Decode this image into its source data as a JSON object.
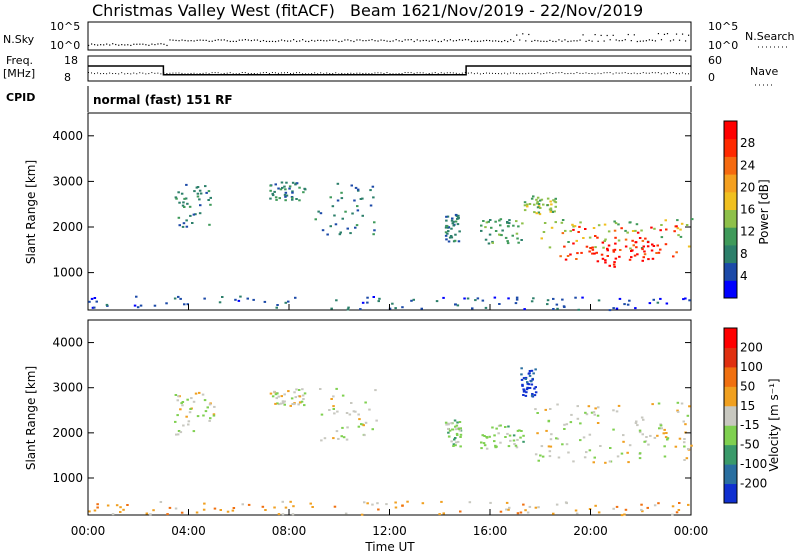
{
  "header": {
    "station": "Christmas Valley West (fitACF)",
    "beam": "Beam 16",
    "dates": "21/Nov/2019 - 22/Nov/2019"
  },
  "top_panels": {
    "nsky_label": "N.Sky",
    "nsearch_label": "N.Search",
    "nsky_ticks": [
      "10^5",
      "10^0"
    ],
    "nsearch_ticks": [
      "10^5",
      "10^0"
    ],
    "freq_label": "Freq.",
    "freq_unit": "[MHz]",
    "freq_ticks": [
      "18",
      "8"
    ],
    "nave_label": "Nave",
    "nave_ticks": [
      "60",
      "0"
    ],
    "cpid_label": "CPID",
    "cpid_text": "normal (fast) 151 RF",
    "freq_trace": [
      {
        "t": 0,
        "mhz": 14
      },
      {
        "t": 3.0,
        "mhz": 14
      },
      {
        "t": 3.0,
        "mhz": 10.5
      },
      {
        "t": 15.05,
        "mhz": 10.5
      },
      {
        "t": 15.05,
        "mhz": 14
      },
      {
        "t": 24,
        "mhz": 14
      }
    ]
  },
  "xaxis": {
    "label": "Time UT",
    "ticks": [
      "00:00",
      "04:00",
      "08:00",
      "12:00",
      "16:00",
      "20:00",
      "00:00"
    ]
  },
  "chart_data": [
    {
      "type": "heatmap",
      "name": "power",
      "xlabel": "Time UT",
      "ylabel": "Slant Range [km]",
      "xlim_hours": [
        0,
        24
      ],
      "ylim_km": [
        180,
        4500
      ],
      "yticks": [
        "4000",
        "3000",
        "2000",
        "1000"
      ],
      "colorbar_label": "Power [dB]",
      "colorbar_ticks": [
        "28",
        "24",
        "20",
        "16",
        "12",
        "8",
        "4"
      ],
      "colors": [
        "#0000ff",
        "#1c4aa8",
        "#2c7f6a",
        "#3f9a5a",
        "#8ec04a",
        "#f0c020",
        "#f4a020",
        "#f56a10",
        "#ff2a00",
        "#ff0000"
      ],
      "regions": [
        {
          "t0": 3.4,
          "t1": 5.0,
          "r0": 1900,
          "r1": 2950,
          "level": 2
        },
        {
          "t0": 7.2,
          "t1": 8.6,
          "r0": 2600,
          "r1": 3000,
          "level": 2
        },
        {
          "t0": 9.0,
          "t1": 11.5,
          "r0": 1850,
          "r1": 3000,
          "level": 2
        },
        {
          "t0": 14.2,
          "t1": 14.8,
          "r0": 1700,
          "r1": 2300,
          "level": 2
        },
        {
          "t0": 15.6,
          "t1": 17.3,
          "r0": 1650,
          "r1": 2200,
          "level": 3
        },
        {
          "t0": 17.3,
          "t1": 18.6,
          "r0": 2300,
          "r1": 2700,
          "level": 4
        },
        {
          "t0": 18.0,
          "t1": 24.0,
          "r0": 1550,
          "r1": 2200,
          "level": 4
        },
        {
          "t0": 18.6,
          "t1": 23.5,
          "r0": 1300,
          "r1": 2050,
          "level": 8
        },
        {
          "t0": 20.0,
          "t1": 22.5,
          "r0": 1150,
          "r1": 1700,
          "level": 9
        },
        {
          "t0": 0.0,
          "t1": 24.0,
          "r0": 200,
          "r1": 500,
          "level": 1
        }
      ]
    },
    {
      "type": "heatmap",
      "name": "velocity",
      "xlabel": "Time UT",
      "ylabel": "Slant Range [km]",
      "xlim_hours": [
        0,
        24
      ],
      "ylim_km": [
        180,
        4500
      ],
      "yticks": [
        "4000",
        "3000",
        "2000",
        "1000"
      ],
      "colorbar_label": "Velocity [m s⁻¹]",
      "colorbar_ticks": [
        "200",
        "100",
        "50",
        "15",
        "-15",
        "-50",
        "-100",
        "-200"
      ],
      "colors": [
        "#1030d0",
        "#2a6fa0",
        "#3a9a6a",
        "#7fd050",
        "#c8c8c0",
        "#f0a020",
        "#f07010",
        "#e03010",
        "#ff0000"
      ],
      "regions": [
        {
          "t0": 3.4,
          "t1": 5.0,
          "r0": 1900,
          "r1": 2950,
          "level": 4
        },
        {
          "t0": 7.2,
          "t1": 8.6,
          "r0": 2600,
          "r1": 3000,
          "level": 4
        },
        {
          "t0": 9.0,
          "t1": 11.5,
          "r0": 1850,
          "r1": 3000,
          "level": 4
        },
        {
          "t0": 14.2,
          "t1": 14.8,
          "r0": 1700,
          "r1": 2300,
          "level": 3
        },
        {
          "t0": 15.6,
          "t1": 17.3,
          "r0": 1650,
          "r1": 2200,
          "level": 3
        },
        {
          "t0": 17.2,
          "t1": 17.8,
          "r0": 2800,
          "r1": 3500,
          "level": 0
        },
        {
          "t0": 17.6,
          "t1": 24.0,
          "r0": 1350,
          "r1": 2700,
          "level": 4
        },
        {
          "t0": 0.0,
          "t1": 24.0,
          "r0": 200,
          "r1": 500,
          "level": 5
        }
      ]
    }
  ]
}
